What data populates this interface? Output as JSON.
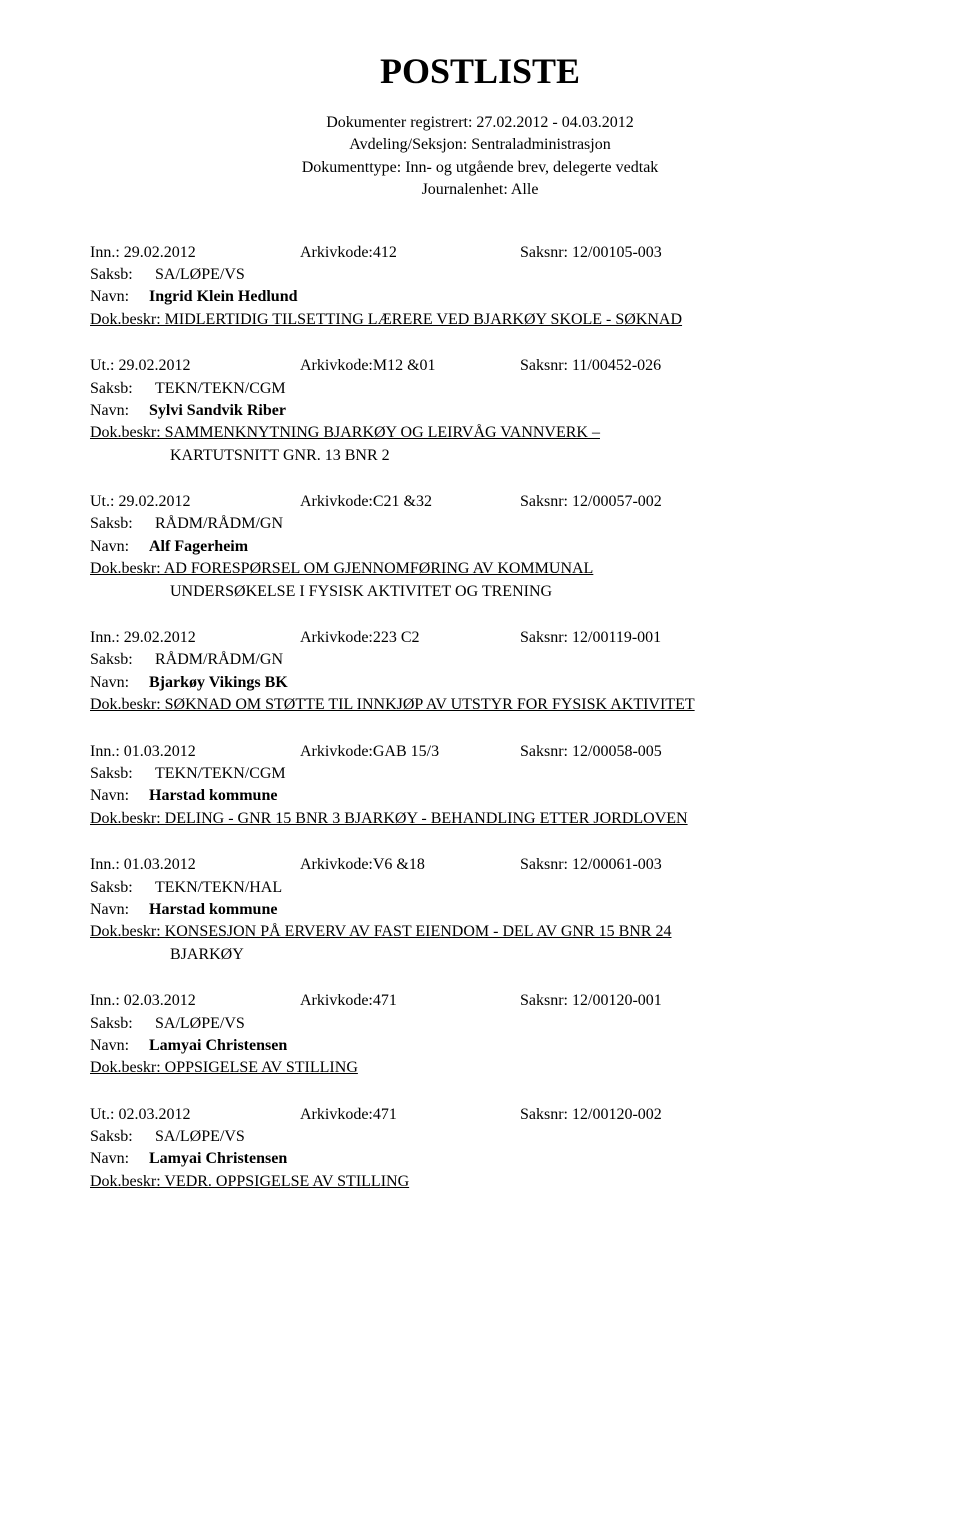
{
  "title": "POSTLISTE",
  "header": {
    "line1": "Dokumenter registrert: 27.02.2012 - 04.03.2012",
    "line2": "Avdeling/Seksjon: Sentraladministrasjon",
    "line3": "Dokumenttype: Inn- og utgående brev, delegerte vedtak",
    "line4": "Journalenhet: Alle"
  },
  "entries": [
    {
      "dir": "Inn.: 29.02.2012",
      "arkiv": "Arkivkode:412",
      "saksnr": "Saksnr: 12/00105-003",
      "saksb": "SA/LØPE/VS",
      "navn": "Ingrid Klein Hedlund",
      "beskr": "Dok.beskr: MIDLERTIDIG TILSETTING LÆRERE VED BJARKØY SKOLE - SØKNAD",
      "cont": ""
    },
    {
      "dir": "Ut.: 29.02.2012",
      "arkiv": "Arkivkode:M12 &01",
      "saksnr": "Saksnr: 11/00452-026",
      "saksb": "TEKN/TEKN/CGM",
      "navn": "Sylvi Sandvik Riber",
      "beskr": "Dok.beskr: SAMMENKNYTNING BJARKØY OG LEIRVÅG VANNVERK –",
      "cont": "KARTUTSNITT  GNR. 13 BNR 2"
    },
    {
      "dir": "Ut.: 29.02.2012",
      "arkiv": "Arkivkode:C21 &32",
      "saksnr": "Saksnr: 12/00057-002",
      "saksb": "RÅDM/RÅDM/GN",
      "navn": "Alf Fagerheim",
      "beskr": "Dok.beskr: AD FORESPØRSEL OM GJENNOMFØRING AV KOMMUNAL",
      "cont": "UNDERSØKELSE I FYSISK AKTIVITET OG TRENING"
    },
    {
      "dir": "Inn.: 29.02.2012",
      "arkiv": "Arkivkode:223 C2",
      "saksnr": "Saksnr: 12/00119-001",
      "saksb": "RÅDM/RÅDM/GN",
      "navn": "Bjarkøy Vikings BK",
      "beskr": "Dok.beskr: SØKNAD OM STØTTE TIL INNKJØP AV UTSTYR FOR FYSISK AKTIVITET",
      "cont": ""
    },
    {
      "dir": "Inn.: 01.03.2012",
      "arkiv": "Arkivkode:GAB 15/3",
      "saksnr": "Saksnr: 12/00058-005",
      "saksb": "TEKN/TEKN/CGM",
      "navn": "Harstad kommune",
      "beskr": "Dok.beskr: DELING - GNR 15 BNR 3 BJARKØY - BEHANDLING ETTER JORDLOVEN",
      "cont": ""
    },
    {
      "dir": "Inn.: 01.03.2012",
      "arkiv": "Arkivkode:V6 &18",
      "saksnr": "Saksnr: 12/00061-003",
      "saksb": "TEKN/TEKN/HAL",
      "navn": "Harstad kommune",
      "beskr": "Dok.beskr: KONSESJON PÅ ERVERV AV FAST EIENDOM - DEL AV GNR 15 BNR 24",
      "cont": "BJARKØY"
    },
    {
      "dir": "Inn.: 02.03.2012",
      "arkiv": "Arkivkode:471",
      "saksnr": "Saksnr: 12/00120-001",
      "saksb": "SA/LØPE/VS",
      "navn": "Lamyai Christensen",
      "beskr": "Dok.beskr: OPPSIGELSE AV STILLING",
      "cont": ""
    },
    {
      "dir": "Ut.: 02.03.2012",
      "arkiv": "Arkivkode:471",
      "saksnr": "Saksnr: 12/00120-002",
      "saksb": "SA/LØPE/VS",
      "navn": "Lamyai Christensen",
      "beskr": "Dok.beskr: VEDR. OPPSIGELSE AV STILLING",
      "cont": ""
    }
  ],
  "labels": {
    "saksb": "Saksb:",
    "navn": "Navn:"
  }
}
